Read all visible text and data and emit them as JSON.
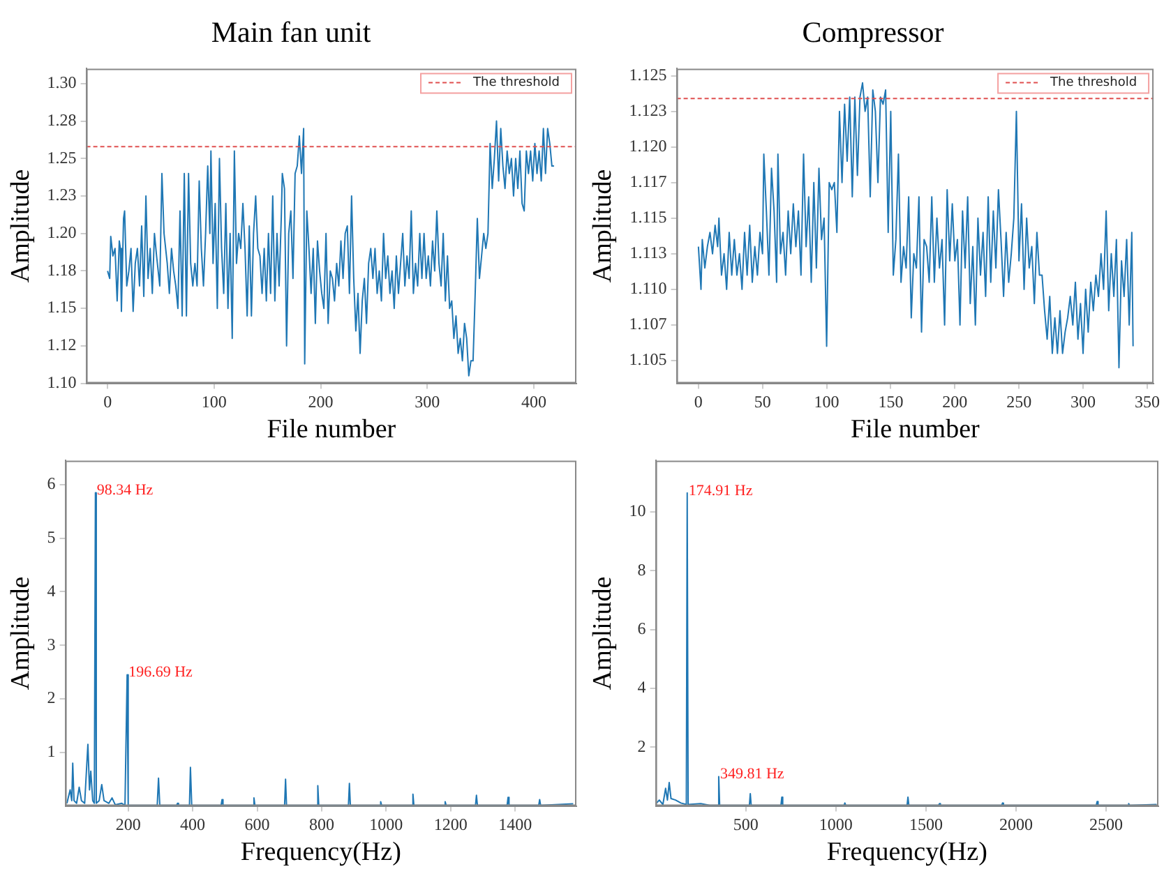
{
  "chart_data": [
    {
      "type": "line",
      "title": "Main fan unit",
      "xlabel": "File number",
      "ylabel": "Amplitude",
      "grid": false,
      "legend": "top right",
      "xlim": [
        -20,
        440
      ],
      "xticks": [
        0,
        100,
        200,
        300,
        400
      ],
      "ylim": [
        1.1,
        1.31
      ],
      "yticks": [
        {
          "value": 1.1,
          "label": "1.10"
        },
        {
          "value": 1.125,
          "label": "1.12"
        },
        {
          "value": 1.15,
          "label": "1.15"
        },
        {
          "value": 1.175,
          "label": "1.18"
        },
        {
          "value": 1.2,
          "label": "1.20"
        },
        {
          "value": 1.225,
          "label": "1.23"
        },
        {
          "value": 1.25,
          "label": "1.25"
        },
        {
          "value": 1.275,
          "label": "1.28"
        },
        {
          "value": 1.3,
          "label": "1.30"
        }
      ],
      "ref_lines": [
        {
          "axis": "y",
          "value": 1.258,
          "label": "The threshold",
          "color": "#e05050",
          "line_style": "dashed"
        }
      ],
      "x": [
        0,
        2,
        3,
        5,
        7,
        9,
        11,
        12,
        13,
        15,
        16,
        18,
        20,
        22,
        24,
        26,
        28,
        30,
        32,
        34,
        36,
        38,
        40,
        42,
        44,
        46,
        49,
        51,
        53,
        56,
        58,
        60,
        62,
        64,
        66,
        68,
        70,
        72,
        74,
        76,
        78,
        80,
        82,
        84,
        86,
        88,
        90,
        92,
        94,
        96,
        97,
        99,
        101,
        103,
        105,
        107,
        109,
        111,
        113,
        115,
        117,
        119,
        121,
        123,
        125,
        127,
        129,
        131,
        133,
        135,
        137,
        139,
        141,
        143,
        145,
        147,
        149,
        151,
        153,
        155,
        157,
        159,
        161,
        163,
        164,
        166,
        168,
        170,
        172,
        174,
        176,
        178,
        180,
        182,
        184,
        185,
        187,
        189,
        191,
        193,
        195,
        197,
        199,
        201,
        203,
        205,
        207,
        209,
        211,
        213,
        215,
        217,
        219,
        221,
        223,
        225,
        227,
        229,
        231,
        233,
        235,
        237,
        239,
        241,
        243,
        245,
        247,
        249,
        251,
        253,
        255,
        257,
        259,
        261,
        263,
        265,
        267,
        269,
        271,
        273,
        275,
        277,
        279,
        281,
        283,
        285,
        287,
        289,
        291,
        293,
        295,
        297,
        299,
        301,
        303,
        305,
        307,
        309,
        311,
        313,
        315,
        317,
        319,
        321,
        323,
        325,
        327,
        329,
        331,
        333,
        335,
        337,
        339,
        341,
        343,
        345,
        347,
        349,
        351,
        353,
        355,
        357,
        359,
        361,
        363,
        365,
        367,
        369,
        371,
        373,
        375,
        377,
        379,
        381,
        383,
        385,
        387,
        389,
        391,
        393,
        395,
        397,
        399,
        401,
        403,
        405,
        407,
        409,
        411,
        413,
        415,
        417,
        419
      ],
      "series": [
        {
          "color": "#1f77b4",
          "values": [
            1.175,
            1.17,
            1.198,
            1.185,
            1.19,
            1.155,
            1.195,
            1.19,
            1.148,
            1.21,
            1.215,
            1.165,
            1.175,
            1.19,
            1.148,
            1.18,
            1.19,
            1.165,
            1.205,
            1.158,
            1.225,
            1.17,
            1.19,
            1.16,
            1.2,
            1.185,
            1.165,
            1.24,
            1.2,
            1.18,
            1.16,
            1.19,
            1.175,
            1.165,
            1.15,
            1.215,
            1.145,
            1.24,
            1.145,
            1.24,
            1.18,
            1.165,
            1.18,
            1.165,
            1.235,
            1.19,
            1.165,
            1.2,
            1.245,
            1.2,
            1.255,
            1.18,
            1.22,
            1.15,
            1.25,
            1.19,
            1.16,
            1.22,
            1.15,
            1.2,
            1.13,
            1.255,
            1.18,
            1.2,
            1.19,
            1.22,
            1.19,
            1.145,
            1.205,
            1.145,
            1.2,
            1.225,
            1.19,
            1.185,
            1.16,
            1.19,
            1.155,
            1.2,
            1.16,
            1.225,
            1.155,
            1.2,
            1.165,
            1.21,
            1.24,
            1.23,
            1.125,
            1.2,
            1.215,
            1.17,
            1.24,
            1.245,
            1.265,
            1.24,
            1.27,
            1.113,
            1.215,
            1.19,
            1.16,
            1.19,
            1.14,
            1.195,
            1.175,
            1.16,
            1.15,
            1.2,
            1.14,
            1.175,
            1.17,
            1.155,
            1.18,
            1.165,
            1.195,
            1.17,
            1.2,
            1.205,
            1.16,
            1.225,
            1.17,
            1.135,
            1.16,
            1.12,
            1.155,
            1.17,
            1.14,
            1.18,
            1.19,
            1.17,
            1.19,
            1.16,
            1.175,
            1.155,
            1.2,
            1.17,
            1.185,
            1.16,
            1.175,
            1.15,
            1.185,
            1.16,
            1.18,
            1.2,
            1.165,
            1.185,
            1.17,
            1.215,
            1.16,
            1.18,
            1.165,
            1.2,
            1.17,
            1.2,
            1.17,
            1.185,
            1.165,
            1.195,
            1.175,
            1.215,
            1.18,
            1.165,
            1.2,
            1.155,
            1.185,
            1.15,
            1.155,
            1.13,
            1.145,
            1.12,
            1.13,
            1.115,
            1.14,
            1.13,
            1.105,
            1.115,
            1.115,
            1.16,
            1.21,
            1.17,
            1.185,
            1.2,
            1.19,
            1.2,
            1.26,
            1.23,
            1.25,
            1.275,
            1.235,
            1.27,
            1.245,
            1.23,
            1.255,
            1.24,
            1.25,
            1.225,
            1.25,
            1.23,
            1.255,
            1.22,
            1.215,
            1.255,
            1.24,
            1.255,
            1.235,
            1.26,
            1.24,
            1.255,
            1.235,
            1.27,
            1.24,
            1.27,
            1.26,
            1.245,
            1.245
          ]
        }
      ]
    },
    {
      "type": "line",
      "title": "Compressor",
      "xlabel": "File number",
      "ylabel": "Amplitude",
      "grid": false,
      "legend": "top right",
      "xlim": [
        -17,
        355
      ],
      "xticks": [
        0,
        50,
        100,
        150,
        200,
        250,
        300,
        350
      ],
      "ylim": [
        1.1034,
        1.1255
      ],
      "yticks": [
        {
          "value": 1.105,
          "label": "1.105"
        },
        {
          "value": 1.1075,
          "label": "1.107"
        },
        {
          "value": 1.11,
          "label": "1.110"
        },
        {
          "value": 1.1125,
          "label": "1.113"
        },
        {
          "value": 1.115,
          "label": "1.115"
        },
        {
          "value": 1.1175,
          "label": "1.117"
        },
        {
          "value": 1.12,
          "label": "1.120"
        },
        {
          "value": 1.1225,
          "label": "1.123"
        },
        {
          "value": 1.125,
          "label": "1.125"
        }
      ],
      "ref_lines": [
        {
          "axis": "y",
          "value": 1.1234,
          "label": "The threshold",
          "color": "#e05050",
          "line_style": "dashed"
        }
      ],
      "x": [
        0,
        2,
        3,
        5,
        7,
        9,
        11,
        13,
        15,
        16,
        18,
        20,
        22,
        24,
        26,
        28,
        30,
        32,
        34,
        36,
        38,
        40,
        42,
        44,
        46,
        48,
        50,
        51,
        53,
        55,
        57,
        59,
        61,
        62,
        64,
        66,
        68,
        70,
        72,
        74,
        76,
        78,
        80,
        82,
        84,
        86,
        88,
        90,
        92,
        94,
        96,
        98,
        100,
        102,
        104,
        106,
        108,
        110,
        112,
        114,
        116,
        118,
        120,
        122,
        124,
        126,
        128,
        130,
        132,
        134,
        136,
        138,
        140,
        142,
        144,
        146,
        148,
        150,
        152,
        154,
        156,
        158,
        160,
        162,
        164,
        166,
        168,
        170,
        172,
        174,
        176,
        178,
        180,
        182,
        184,
        186,
        188,
        190,
        192,
        194,
        196,
        198,
        200,
        202,
        204,
        206,
        208,
        210,
        212,
        214,
        216,
        218,
        220,
        222,
        224,
        226,
        228,
        230,
        232,
        234,
        236,
        238,
        240,
        242,
        244,
        246,
        248,
        250,
        252,
        254,
        256,
        258,
        260,
        262,
        264,
        266,
        268,
        270,
        272,
        274,
        276,
        278,
        280,
        282,
        284,
        286,
        288,
        290,
        292,
        294,
        296,
        298,
        300,
        302,
        304,
        306,
        308,
        310,
        312,
        314,
        316,
        318,
        320,
        322,
        324,
        326,
        328,
        330,
        332,
        334,
        336,
        338,
        339
      ],
      "series": [
        {
          "color": "#1f77b4",
          "values": [
            1.113,
            1.11,
            1.1135,
            1.1115,
            1.113,
            1.114,
            1.1125,
            1.1145,
            1.113,
            1.115,
            1.111,
            1.1125,
            1.11,
            1.114,
            1.111,
            1.1135,
            1.111,
            1.1125,
            1.11,
            1.114,
            1.111,
            1.1145,
            1.1105,
            1.113,
            1.111,
            1.114,
            1.1125,
            1.1195,
            1.1155,
            1.111,
            1.1185,
            1.1155,
            1.1105,
            1.1195,
            1.1125,
            1.114,
            1.111,
            1.1155,
            1.1125,
            1.116,
            1.113,
            1.1155,
            1.111,
            1.1195,
            1.113,
            1.1165,
            1.1105,
            1.1175,
            1.1115,
            1.1185,
            1.1135,
            1.115,
            1.106,
            1.1175,
            1.117,
            1.1175,
            1.114,
            1.1225,
            1.1175,
            1.123,
            1.119,
            1.1235,
            1.1165,
            1.1235,
            1.118,
            1.1235,
            1.1245,
            1.1225,
            1.1235,
            1.1165,
            1.124,
            1.1225,
            1.1175,
            1.1235,
            1.123,
            1.124,
            1.114,
            1.1225,
            1.111,
            1.1135,
            1.1195,
            1.1105,
            1.113,
            1.1115,
            1.1165,
            1.108,
            1.1125,
            1.1115,
            1.1165,
            1.107,
            1.1135,
            1.113,
            1.1105,
            1.1165,
            1.1105,
            1.115,
            1.1115,
            1.1135,
            1.1075,
            1.117,
            1.112,
            1.116,
            1.112,
            1.1135,
            1.1075,
            1.1155,
            1.1115,
            1.1165,
            1.109,
            1.113,
            1.1075,
            1.115,
            1.111,
            1.114,
            1.1095,
            1.1165,
            1.1105,
            1.1155,
            1.1115,
            1.117,
            1.1135,
            1.1095,
            1.114,
            1.1105,
            1.1125,
            1.115,
            1.1225,
            1.112,
            1.116,
            1.11,
            1.115,
            1.1115,
            1.113,
            1.109,
            1.114,
            1.111,
            1.111,
            1.1085,
            1.1065,
            1.1095,
            1.1055,
            1.108,
            1.1055,
            1.1085,
            1.1055,
            1.107,
            1.108,
            1.1095,
            1.1075,
            1.1105,
            1.1065,
            1.109,
            1.1055,
            1.11,
            1.107,
            1.1105,
            1.1085,
            1.111,
            1.1095,
            1.1125,
            1.11,
            1.1155,
            1.1085,
            1.1125,
            1.1095,
            1.1135,
            1.1045,
            1.112,
            1.1095,
            1.1135,
            1.1075,
            1.114,
            1.106
          ]
        }
      ]
    },
    {
      "type": "line",
      "xlabel": "Frequency(Hz)",
      "ylabel": "Amplitude",
      "grid": false,
      "xlim": [
        5,
        1590
      ],
      "xticks": [
        200,
        400,
        600,
        800,
        1000,
        1200,
        1400
      ],
      "ylim": [
        0,
        6.45
      ],
      "yticks": [
        1,
        2,
        3,
        4,
        5,
        6
      ],
      "annotations": [
        {
          "text": "98.34 Hz",
          "x": 98.34,
          "y": 5.85
        },
        {
          "text": "196.69 Hz",
          "x": 196.69,
          "y": 2.45
        }
      ],
      "x": [
        10,
        20,
        25,
        28,
        32,
        40,
        48,
        55,
        65,
        75,
        80,
        84,
        90,
        95,
        98.34,
        101,
        110,
        118,
        125,
        140,
        150,
        160,
        180,
        190,
        196.69,
        200,
        290,
        294,
        298,
        350,
        353,
        356,
        390,
        393,
        397,
        488,
        491,
        494,
        587,
        590,
        593,
        685,
        688,
        691,
        785,
        788,
        791,
        883,
        886,
        889,
        980,
        983,
        986,
        1080,
        1083,
        1086,
        1180,
        1183,
        1186,
        1277,
        1280,
        1283,
        1375,
        1378,
        1381,
        1473,
        1476,
        1479,
        1580
      ],
      "series": [
        {
          "color": "#1f77b4",
          "values": [
            0.05,
            0.3,
            0.1,
            0.8,
            0.1,
            0.05,
            0.35,
            0.1,
            0.05,
            1.15,
            0.3,
            0.65,
            0.1,
            0.05,
            5.85,
            0.05,
            0.1,
            0.4,
            0.1,
            0.05,
            0.15,
            0.02,
            0.05,
            0.01,
            2.45,
            0.01,
            0.01,
            0.52,
            0.01,
            0.01,
            0.05,
            0.01,
            0.01,
            0.72,
            0.01,
            0.01,
            0.12,
            0.01,
            0.01,
            0.15,
            0.01,
            0.01,
            0.5,
            0.01,
            0.01,
            0.38,
            0.01,
            0.01,
            0.42,
            0.01,
            0.01,
            0.08,
            0.01,
            0.01,
            0.22,
            0.01,
            0.01,
            0.08,
            0.01,
            0.01,
            0.2,
            0.01,
            0.01,
            0.16,
            0.01,
            0.01,
            0.12,
            0.01,
            0.04
          ]
        }
      ]
    },
    {
      "type": "line",
      "xlabel": "Frequency(Hz)",
      "ylabel": "Amplitude",
      "grid": false,
      "xlim": [
        0,
        2790
      ],
      "xticks": [
        500,
        1000,
        1500,
        2000,
        2500
      ],
      "ylim": [
        0,
        11.75
      ],
      "yticks": [
        2,
        4,
        6,
        8,
        10
      ],
      "annotations": [
        {
          "text": "174.91 Hz",
          "x": 174.91,
          "y": 10.65
        },
        {
          "text": "349.81 Hz",
          "x": 349.81,
          "y": 1.0
        }
      ],
      "x": [
        5,
        20,
        40,
        55,
        65,
        75,
        85,
        110,
        140,
        170,
        174.91,
        180,
        250,
        300,
        345,
        349.81,
        355,
        520,
        525,
        530,
        695,
        700,
        705,
        1045,
        1050,
        1055,
        1395,
        1400,
        1405,
        1570,
        1575,
        1580,
        1920,
        1925,
        1930,
        2445,
        2450,
        2455,
        2620,
        2625,
        2630,
        2780
      ],
      "series": [
        {
          "color": "#1f77b4",
          "values": [
            0.1,
            0.2,
            0.05,
            0.6,
            0.2,
            0.8,
            0.25,
            0.2,
            0.1,
            0.05,
            10.65,
            0.05,
            0.08,
            0.02,
            0.02,
            1.0,
            0.02,
            0.02,
            0.42,
            0.02,
            0.02,
            0.3,
            0.02,
            0.02,
            0.1,
            0.02,
            0.02,
            0.3,
            0.02,
            0.02,
            0.08,
            0.02,
            0.02,
            0.1,
            0.02,
            0.02,
            0.15,
            0.02,
            0.02,
            0.08,
            0.02,
            0.05
          ]
        }
      ]
    }
  ]
}
